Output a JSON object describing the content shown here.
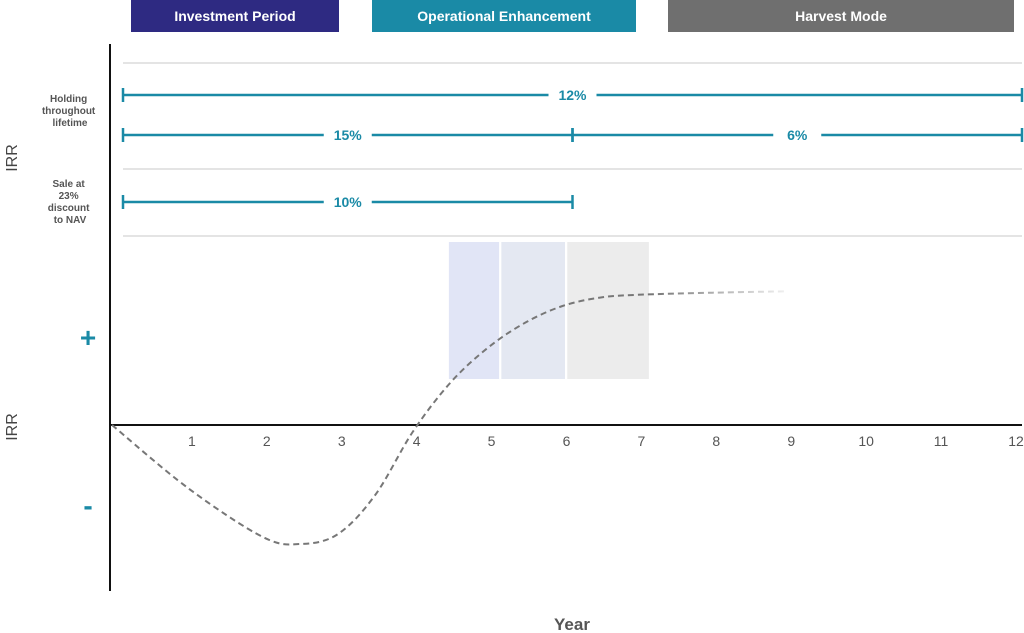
{
  "phases": [
    {
      "label": "Investment Period",
      "color": "#2e2a82"
    },
    {
      "label": "Operational Enhancement",
      "color": "#1a8aa6"
    },
    {
      "label": "Harvest Mode",
      "color": "#6f6f6f"
    }
  ],
  "irr_labels": {
    "top": "IRR",
    "bottom": "IRR"
  },
  "rows": [
    {
      "label_lines": [
        "Holding",
        "throughout",
        "lifetime"
      ]
    },
    {
      "label_lines": [
        "Sale at",
        "23%",
        "discount",
        "to NAV"
      ]
    }
  ],
  "spans": [
    {
      "value": "12%",
      "start": 0,
      "end": 12
    },
    {
      "value": "15%",
      "start": 0,
      "end": 6
    },
    {
      "value": "6%",
      "start": 6,
      "end": 12
    },
    {
      "value": "10%",
      "start": 0,
      "end": 6
    }
  ],
  "signs": {
    "plus": "+",
    "minus": "-"
  },
  "accent_color": "#1a8aa6",
  "chart_data": {
    "type": "line",
    "xlabel": "Year",
    "ylabel": "IRR",
    "x_ticks": [
      "1",
      "2",
      "3",
      "4",
      "5",
      "6",
      "7",
      "8",
      "9",
      "10",
      "11",
      "12"
    ],
    "xlim": [
      0,
      12
    ],
    "curve_style": "dashed",
    "series": [
      {
        "x": [
          0,
          1,
          2,
          2.5,
          3,
          3.5,
          4,
          4.5,
          5,
          5.5,
          6,
          6.5,
          7,
          8,
          9
        ],
        "y": [
          0,
          -0.45,
          -0.8,
          -0.85,
          -0.78,
          -0.5,
          -0.05,
          0.3,
          0.55,
          0.73,
          0.85,
          0.91,
          0.93,
          0.945,
          0.955
        ]
      }
    ],
    "highlight_bands": [
      {
        "x_start": 4.35,
        "x_end": 5.02,
        "color": "#e1e5f6"
      },
      {
        "x_start": 5.05,
        "x_end": 5.9,
        "color": "#e4e8f2"
      },
      {
        "x_start": 5.93,
        "x_end": 7.02,
        "color": "#ececec"
      }
    ]
  }
}
